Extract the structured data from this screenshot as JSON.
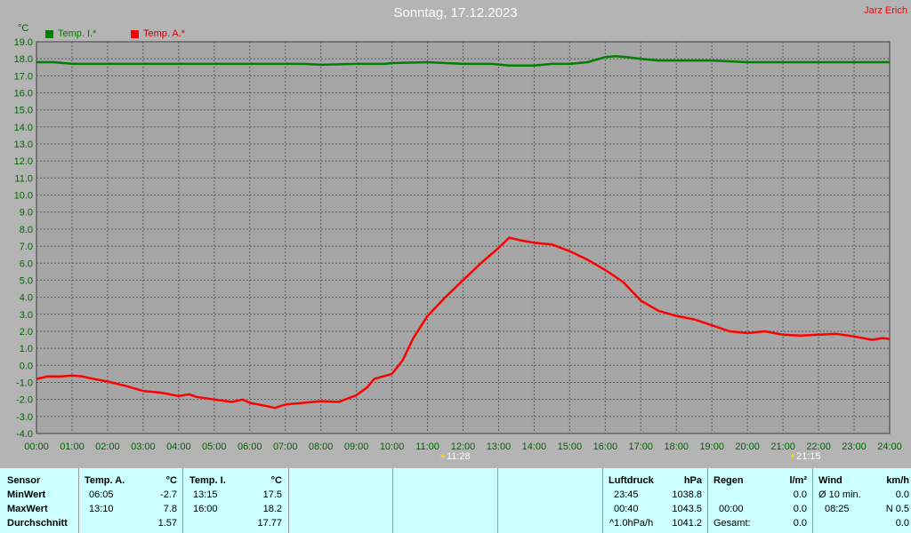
{
  "header": {
    "title": "Sonntag, 17.12.2023",
    "author": "Jarz Erich"
  },
  "y_unit": "°C",
  "colors": {
    "background": "#b4b4b4",
    "plot_bg": "#a6a6a6",
    "grid": "#5a5a5a",
    "inside": "#008000",
    "outside": "#ff0000",
    "axis_text": "#006400",
    "table_bg": "#ccffff"
  },
  "legend": [
    {
      "label": "Temp. I.*",
      "color": "#008000"
    },
    {
      "label": "Temp. A.*",
      "color": "#ff0000"
    }
  ],
  "markers": {
    "sunrise": "11:28",
    "sunset": "21:15"
  },
  "chart_data": {
    "type": "line",
    "ylim": [
      -4,
      19
    ],
    "xlim": [
      0,
      24
    ],
    "yticks": [
      "19.0",
      "18.0",
      "17.0",
      "16.0",
      "15.0",
      "14.0",
      "13.0",
      "12.0",
      "11.0",
      "10.0",
      "9.0",
      "8.0",
      "7.0",
      "6.0",
      "5.0",
      "4.0",
      "3.0",
      "2.0",
      "1.0",
      "0.0",
      "-1.0",
      "-2.0",
      "-3.0",
      "-4.0"
    ],
    "xticks": [
      "00:00",
      "01:00",
      "02:00",
      "03:00",
      "04:00",
      "05:00",
      "06:00",
      "07:00",
      "08:00",
      "09:00",
      "10:00",
      "11:00",
      "12:00",
      "13:00",
      "14:00",
      "15:00",
      "16:00",
      "17:00",
      "18:00",
      "19:00",
      "20:00",
      "21:00",
      "22:00",
      "23:00",
      "24:00"
    ],
    "grid": true,
    "legend_position": "top-left",
    "series": [
      {
        "name": "Temp. I.*",
        "color": "#008000",
        "points": [
          [
            0,
            17.8
          ],
          [
            0.5,
            17.8
          ],
          [
            1,
            17.7
          ],
          [
            2,
            17.7
          ],
          [
            3,
            17.7
          ],
          [
            4,
            17.7
          ],
          [
            5,
            17.7
          ],
          [
            6,
            17.7
          ],
          [
            7,
            17.7
          ],
          [
            7.5,
            17.7
          ],
          [
            8,
            17.65
          ],
          [
            9,
            17.7
          ],
          [
            9.8,
            17.7
          ],
          [
            10,
            17.75
          ],
          [
            11,
            17.8
          ],
          [
            12,
            17.7
          ],
          [
            12.8,
            17.7
          ],
          [
            13.3,
            17.6
          ],
          [
            14,
            17.6
          ],
          [
            14.5,
            17.7
          ],
          [
            15,
            17.7
          ],
          [
            15.5,
            17.8
          ],
          [
            16,
            18.1
          ],
          [
            16.3,
            18.15
          ],
          [
            16.6,
            18.1
          ],
          [
            17,
            18.0
          ],
          [
            17.5,
            17.9
          ],
          [
            18,
            17.9
          ],
          [
            19,
            17.9
          ],
          [
            20,
            17.8
          ],
          [
            21,
            17.8
          ],
          [
            22,
            17.8
          ],
          [
            23,
            17.8
          ],
          [
            24,
            17.8
          ]
        ]
      },
      {
        "name": "Temp. A.*",
        "color": "#ff0000",
        "points": [
          [
            0,
            -0.8
          ],
          [
            0.3,
            -0.65
          ],
          [
            0.7,
            -0.65
          ],
          [
            1,
            -0.6
          ],
          [
            1.3,
            -0.65
          ],
          [
            1.5,
            -0.75
          ],
          [
            2,
            -0.95
          ],
          [
            2.5,
            -1.2
          ],
          [
            3,
            -1.5
          ],
          [
            3.5,
            -1.6
          ],
          [
            4,
            -1.8
          ],
          [
            4.3,
            -1.7
          ],
          [
            4.5,
            -1.85
          ],
          [
            5,
            -2.0
          ],
          [
            5.5,
            -2.15
          ],
          [
            5.8,
            -2.0
          ],
          [
            6,
            -2.2
          ],
          [
            6.5,
            -2.4
          ],
          [
            6.7,
            -2.5
          ],
          [
            7,
            -2.3
          ],
          [
            7.5,
            -2.2
          ],
          [
            8,
            -2.1
          ],
          [
            8.5,
            -2.15
          ],
          [
            9,
            -1.75
          ],
          [
            9.3,
            -1.3
          ],
          [
            9.5,
            -0.8
          ],
          [
            10,
            -0.5
          ],
          [
            10.3,
            0.3
          ],
          [
            10.6,
            1.6
          ],
          [
            11,
            2.9
          ],
          [
            11.5,
            4.0
          ],
          [
            12,
            5.0
          ],
          [
            12.5,
            6.0
          ],
          [
            13,
            6.9
          ],
          [
            13.3,
            7.5
          ],
          [
            13.6,
            7.35
          ],
          [
            14,
            7.2
          ],
          [
            14.5,
            7.1
          ],
          [
            15,
            6.7
          ],
          [
            15.5,
            6.2
          ],
          [
            16,
            5.6
          ],
          [
            16.5,
            4.9
          ],
          [
            17,
            3.8
          ],
          [
            17.5,
            3.2
          ],
          [
            18,
            2.9
          ],
          [
            18.5,
            2.7
          ],
          [
            19,
            2.35
          ],
          [
            19.5,
            2.0
          ],
          [
            20,
            1.9
          ],
          [
            20.5,
            2.0
          ],
          [
            21,
            1.8
          ],
          [
            21.5,
            1.75
          ],
          [
            22,
            1.8
          ],
          [
            22.5,
            1.85
          ],
          [
            23,
            1.7
          ],
          [
            23.5,
            1.5
          ],
          [
            23.8,
            1.6
          ],
          [
            24,
            1.55
          ]
        ]
      }
    ]
  },
  "stats": {
    "sensor": {
      "header": "Sensor",
      "rows": [
        "MinWert",
        "MaxWert",
        "Durchschnitt"
      ]
    },
    "temp_a": {
      "header": "Temp. A.",
      "unit": "°C",
      "min_time": "06:05",
      "min_val": "-2.7",
      "max_time": "13:10",
      "max_val": "7.8",
      "avg": "1.57"
    },
    "temp_i": {
      "header": "Temp. I.",
      "unit": "°C",
      "min_time": "13:15",
      "min_val": "17.5",
      "max_time": "16:00",
      "max_val": "18.2",
      "avg": "17.77"
    },
    "pressure": {
      "header": "Luftdruck",
      "unit": "hPa",
      "min_time": "23:45",
      "min_val": "1038.8",
      "max_time": "00:40",
      "max_val": "1043.5",
      "trend_label": "^1.0hPa/h",
      "trend_val": "1041.2"
    },
    "rain": {
      "header": "Regen",
      "unit": "l/m²",
      "row2_time": "00:00",
      "row2_val": "0.0",
      "row1_val": "0.0",
      "total_label": "Gesamt:",
      "total_val": "0.0"
    },
    "wind": {
      "header": "Wind",
      "unit": "km/h",
      "avg_label": "Ø 10 min.",
      "avg_val": "0.0",
      "max_time": "08:25",
      "max_val": "N 0.5",
      "row3_val": "0.0"
    }
  }
}
